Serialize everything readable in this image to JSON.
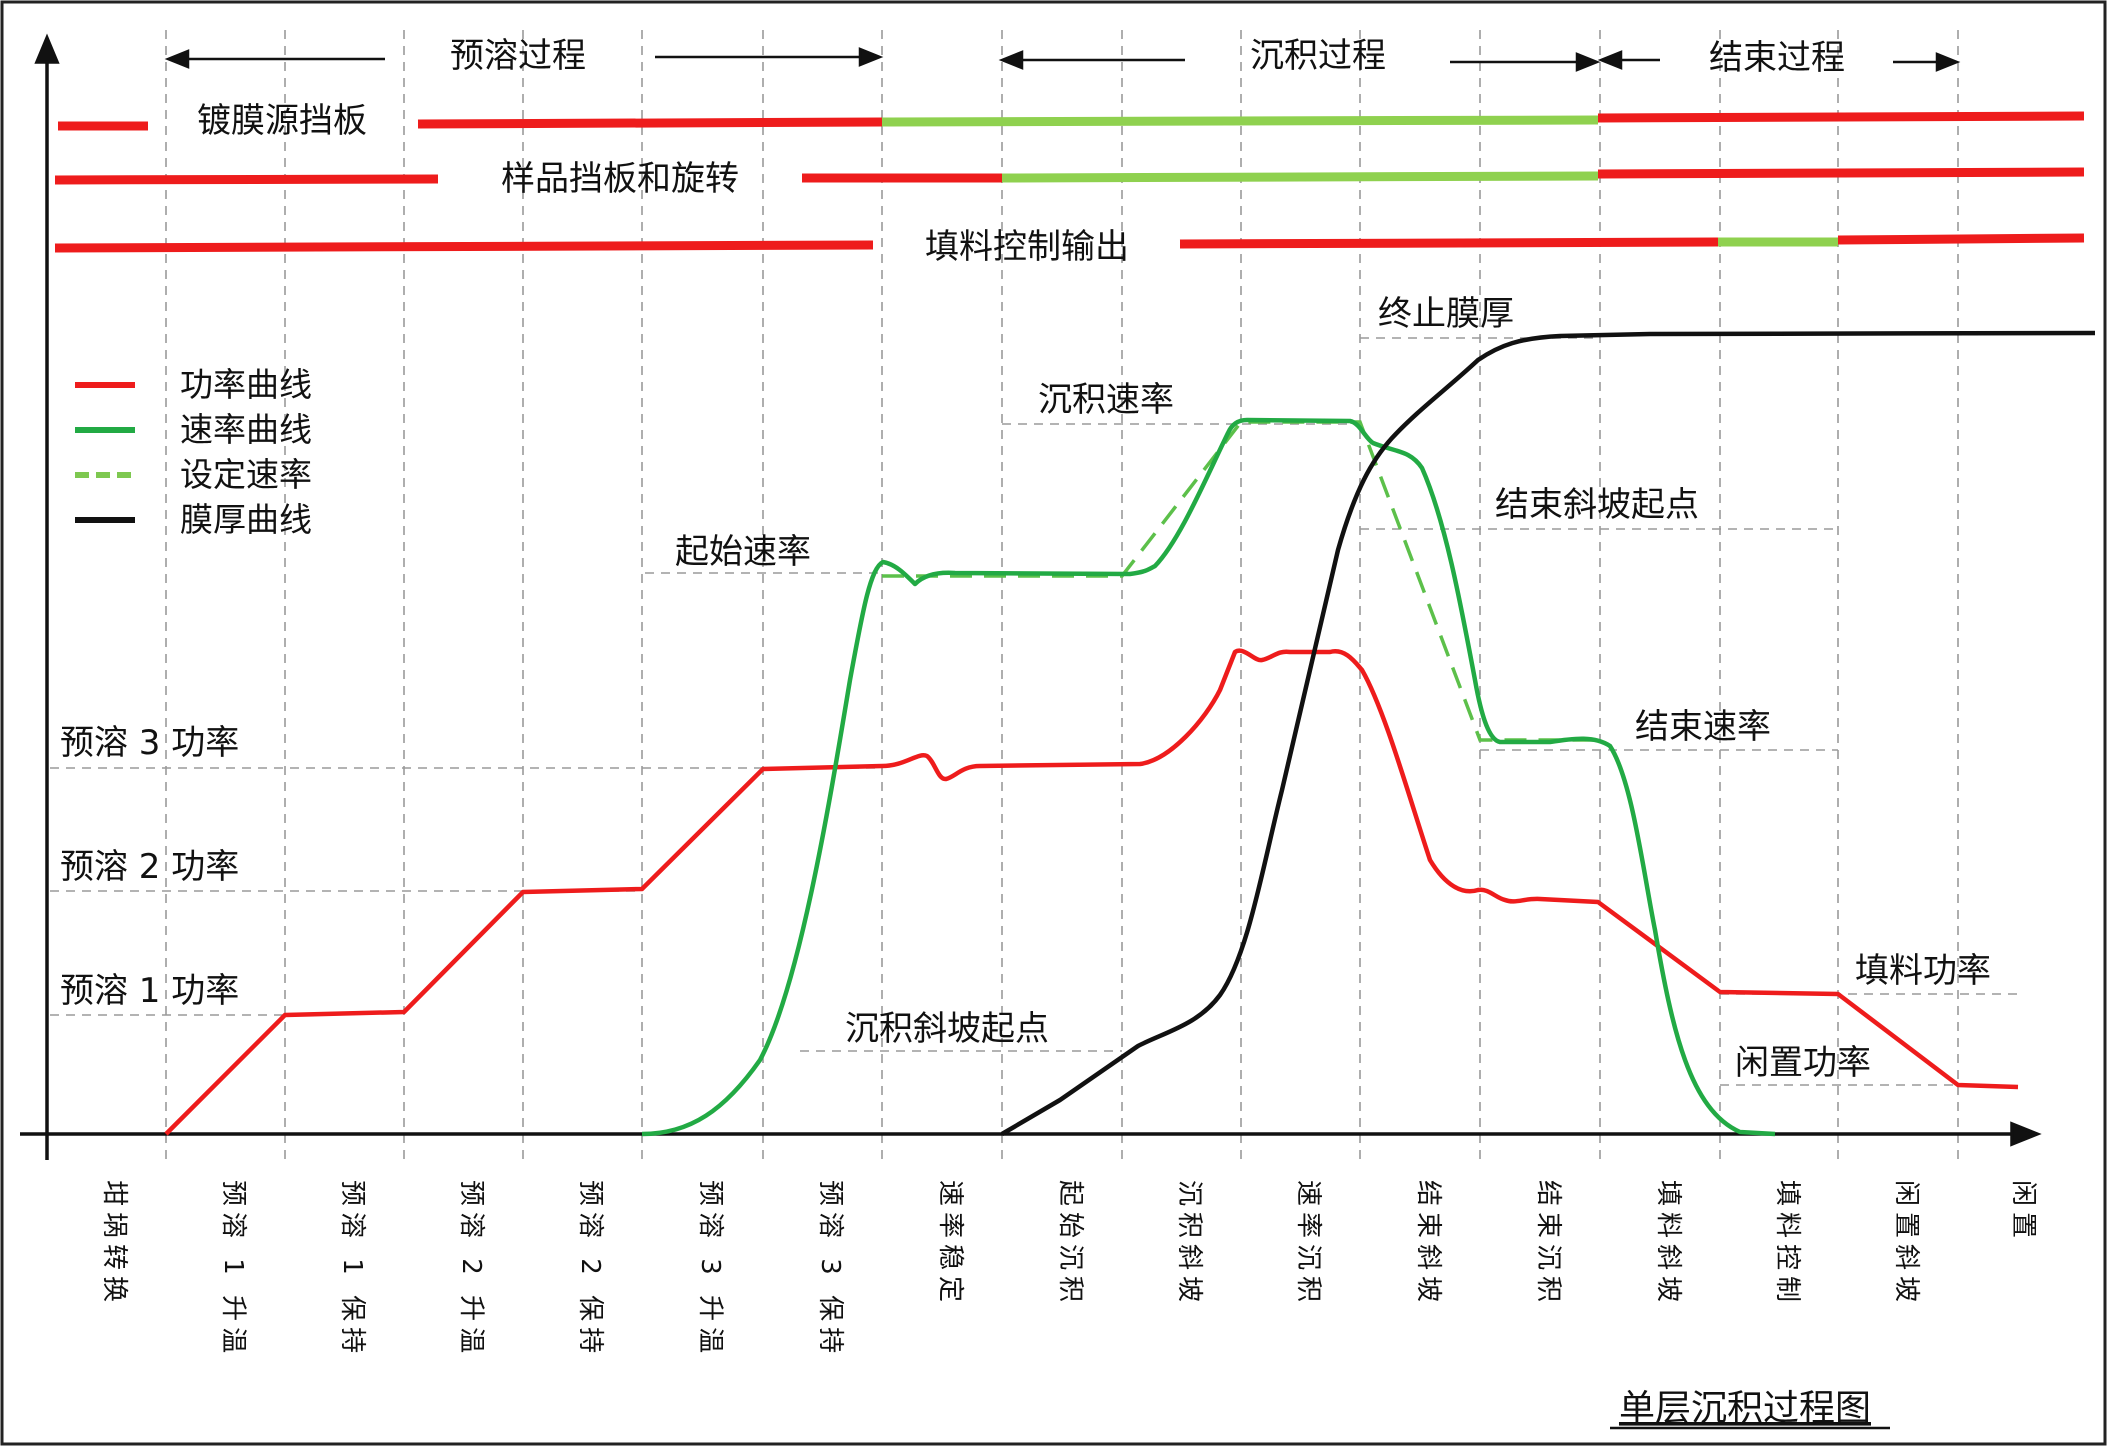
{
  "process_headers": [
    "预溶过程",
    "沉积过程",
    "结束过程"
  ],
  "bar_labels": [
    "镀膜源挡板",
    "样品挡板和旋转",
    "填料控制输出"
  ],
  "legend": [
    {
      "label": "功率曲线",
      "color": "#ee1c1c",
      "style": "solid"
    },
    {
      "label": "速率曲线",
      "color": "#22aa44",
      "style": "solid"
    },
    {
      "label": "设定速率",
      "color": "#7ec850",
      "style": "dashed"
    },
    {
      "label": "膜厚曲线",
      "color": "#111111",
      "style": "solid"
    }
  ],
  "power_levels": [
    "预溶 3 功率",
    "预溶 2 功率",
    "预溶 1 功率"
  ],
  "annotations": [
    "终止膜厚",
    "沉积速率",
    "结束斜坡起点",
    "起始速率",
    "结束速率",
    "沉积斜坡起点",
    "填料功率",
    "闲置功率"
  ],
  "phases": [
    "坩埚转换",
    "预溶 1 升温",
    "预溶 1 保持",
    "预溶 2 升温",
    "预溶 2 保持",
    "预溶 3 升温",
    "预溶 3 保持",
    "速率稳定",
    "起始沉积",
    "沉积斜坡",
    "速率沉积",
    "结束斜坡",
    "结束沉积",
    "填料斜坡",
    "填料控制",
    "闲置斜坡",
    "闲置"
  ],
  "caption": "单层沉积过程图",
  "colors": {
    "power": "#ee1c1c",
    "rate": "#22aa44",
    "setpoint": "#7ec850",
    "thickness": "#111111",
    "bar_off": "#ee1c1c",
    "bar_on": "#8fd14f"
  }
}
